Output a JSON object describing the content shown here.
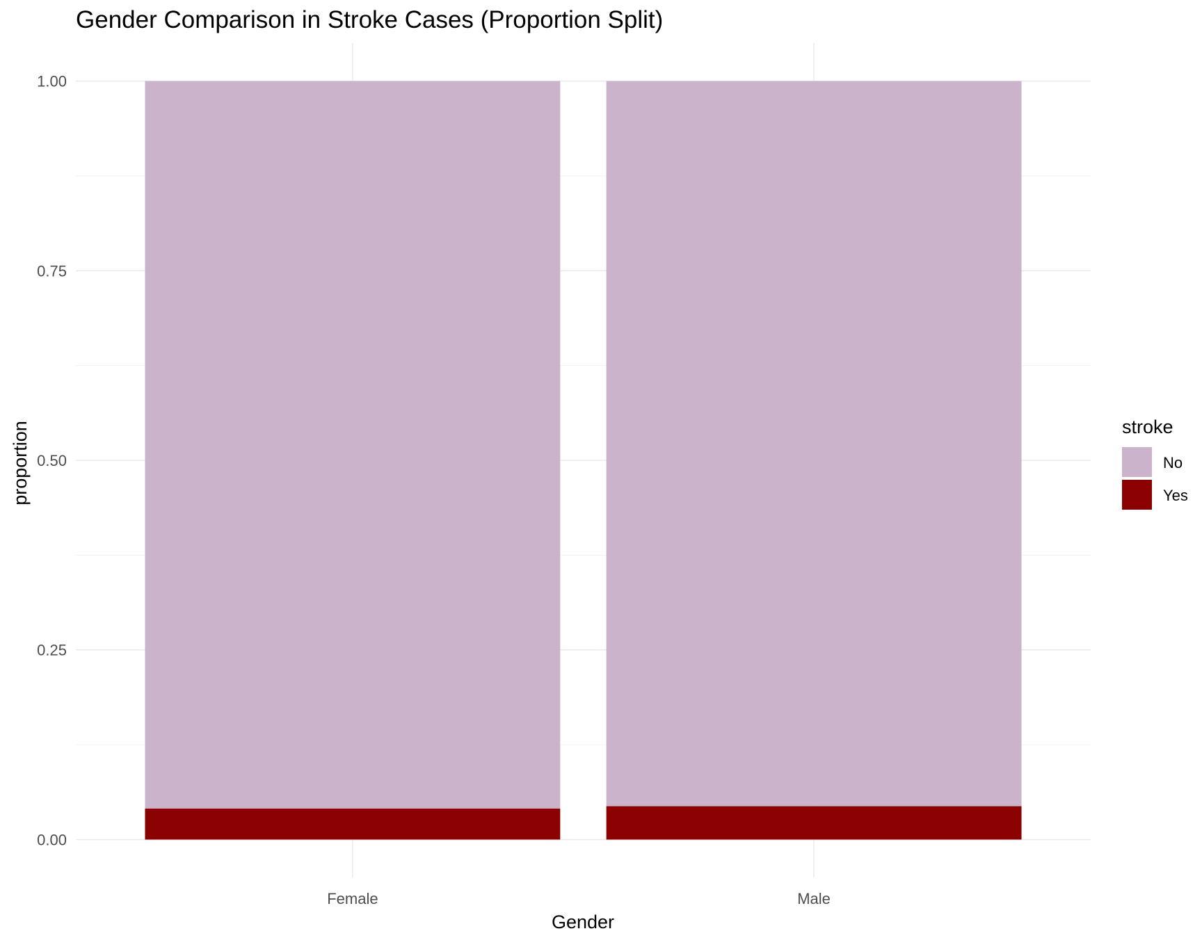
{
  "chart_data": {
    "type": "bar",
    "stacked": true,
    "title": "Gender Comparison in Stroke Cases (Proportion Split)",
    "xlabel": "Gender",
    "ylabel": "proportion",
    "categories": [
      "Female",
      "Male"
    ],
    "series": [
      {
        "name": "No",
        "color": "#ccb3cc",
        "values": [
          0.959,
          0.956
        ]
      },
      {
        "name": "Yes",
        "color": "#8b0000",
        "values": [
          0.041,
          0.044
        ]
      }
    ],
    "ylim": [
      -0.05,
      1.05
    ],
    "yticks": [
      0.0,
      0.25,
      0.5,
      0.75,
      1.0
    ],
    "ytick_labels": [
      "0.00",
      "0.25",
      "0.50",
      "0.75",
      "1.00"
    ],
    "grid": true,
    "legend": {
      "title": "stroke",
      "position": "right",
      "order": [
        "No",
        "Yes"
      ]
    }
  }
}
